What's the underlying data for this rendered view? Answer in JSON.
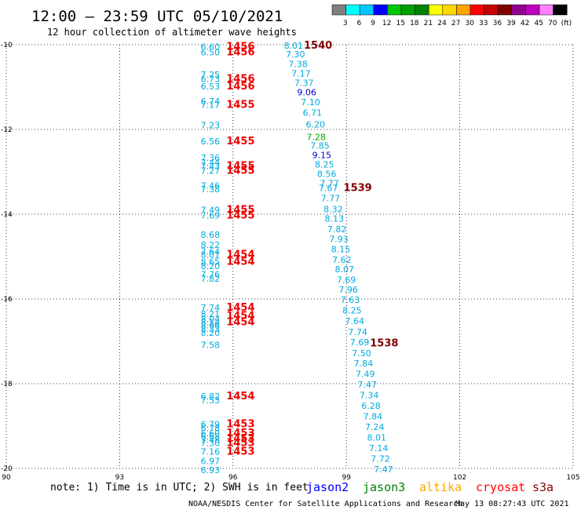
{
  "header": {
    "title": "12:00 – 23:59 UTC 05/10/2021",
    "subtitle": "12 hour collection of altimeter wave heights"
  },
  "color_scale": {
    "colors": [
      "#808080",
      "#00ffff",
      "#00c8ff",
      "#0000ff",
      "#00c800",
      "#00a000",
      "#008000",
      "#ffff00",
      "#ffd700",
      "#ffa500",
      "#ff0000",
      "#c80000",
      "#800000",
      "#900090",
      "#c000c0",
      "#ff80ff",
      "#000000"
    ],
    "labels": [
      "3",
      "6",
      "9",
      "12",
      "15",
      "18",
      "21",
      "24",
      "27",
      "30",
      "33",
      "36",
      "39",
      "42",
      "45",
      "70",
      "(ft)"
    ]
  },
  "footer": {
    "note": "note:  1) Time is in UTC; 2) SWH is in feet",
    "satellites": [
      {
        "name": "jason2",
        "color": "#0000ff"
      },
      {
        "name": "jason3",
        "color": "#008000"
      },
      {
        "name": "altika",
        "color": "#ffa500"
      },
      {
        "name": "cryosat",
        "color": "#ff0000"
      },
      {
        "name": "s3a",
        "color": "#800000"
      }
    ],
    "credit": "NOAA/NESDIS Center for Satellite Applications and Research",
    "timestamp": "May 13 08:27:43 UTC 2021"
  },
  "chart_data": {
    "type": "scatter",
    "title": "",
    "xlabel": "",
    "ylabel": "",
    "xlim": [
      90,
      105
    ],
    "ylim": [
      -20,
      -10
    ],
    "x_ticks": [
      "90",
      "93",
      "96",
      "99",
      "102",
      "105"
    ],
    "y_ticks": [
      "-10",
      "-12",
      "-14",
      "-16",
      "-18",
      "-20"
    ],
    "grid": "dotted",
    "track_a_color": "#00aadd",
    "track_a_x_label": 95.4,
    "track_a": [
      {
        "y": -10.05,
        "v": "6.60"
      },
      {
        "y": -10.18,
        "v": "6.50"
      },
      {
        "y": -10.7,
        "v": "7.25"
      },
      {
        "y": -10.81,
        "v": "6.73"
      },
      {
        "y": -10.98,
        "v": "6.53"
      },
      {
        "y": -11.33,
        "v": "6.74"
      },
      {
        "y": -11.42,
        "v": "7.17"
      },
      {
        "y": -11.9,
        "v": "7.23"
      },
      {
        "y": -12.28,
        "v": "6.56"
      },
      {
        "y": -12.67,
        "v": "7.36"
      },
      {
        "y": -12.78,
        "v": "7.44"
      },
      {
        "y": -12.86,
        "v": "7.43"
      },
      {
        "y": -12.97,
        "v": "7.27"
      },
      {
        "y": -13.32,
        "v": "7.46"
      },
      {
        "y": -13.41,
        "v": "7.38"
      },
      {
        "y": -13.9,
        "v": "7.49"
      },
      {
        "y": -14.03,
        "v": "7.69"
      },
      {
        "y": -14.48,
        "v": "8.68"
      },
      {
        "y": -14.72,
        "v": "8.22"
      },
      {
        "y": -14.88,
        "v": "7.64"
      },
      {
        "y": -14.95,
        "v": "8.01"
      },
      {
        "y": -15.12,
        "v": "8.65"
      },
      {
        "y": -15.22,
        "v": "8.20"
      },
      {
        "y": -15.42,
        "v": "7.76"
      },
      {
        "y": -15.52,
        "v": "7.82"
      },
      {
        "y": -16.2,
        "v": "7.74"
      },
      {
        "y": -16.35,
        "v": "8.21"
      },
      {
        "y": -16.47,
        "v": "8.04"
      },
      {
        "y": -16.55,
        "v": "8.14"
      },
      {
        "y": -16.62,
        "v": "8.06"
      },
      {
        "y": -16.7,
        "v": "8.33"
      },
      {
        "y": -16.8,
        "v": "8.20"
      },
      {
        "y": -17.08,
        "v": "7.58"
      },
      {
        "y": -18.3,
        "v": "6.82"
      },
      {
        "y": -18.39,
        "v": "7.53"
      },
      {
        "y": -18.95,
        "v": "6.79"
      },
      {
        "y": -19.05,
        "v": "6.78"
      },
      {
        "y": -19.17,
        "v": "6.60"
      },
      {
        "y": -19.24,
        "v": "6.68"
      },
      {
        "y": -19.32,
        "v": "7.48"
      },
      {
        "y": -19.4,
        "v": "7.30"
      },
      {
        "y": -19.6,
        "v": "7.16"
      },
      {
        "y": -19.82,
        "v": "6.97"
      },
      {
        "y": -20.04,
        "v": "6.93"
      }
    ],
    "time_label_color": "#ee0000",
    "track_a_times_x": 96.2,
    "track_a_times": [
      {
        "y": -10.05,
        "v": "1456"
      },
      {
        "y": -10.18,
        "v": "1456"
      },
      {
        "y": -10.81,
        "v": "1456"
      },
      {
        "y": -10.98,
        "v": "1456"
      },
      {
        "y": -11.42,
        "v": "1455"
      },
      {
        "y": -12.28,
        "v": "1455"
      },
      {
        "y": -12.86,
        "v": "1455"
      },
      {
        "y": -12.97,
        "v": "1455"
      },
      {
        "y": -13.9,
        "v": "1455"
      },
      {
        "y": -14.03,
        "v": "1455"
      },
      {
        "y": -14.95,
        "v": "1454"
      },
      {
        "y": -15.12,
        "v": "1454"
      },
      {
        "y": -16.2,
        "v": "1454"
      },
      {
        "y": -16.4,
        "v": "1454"
      },
      {
        "y": -16.55,
        "v": "1454"
      },
      {
        "y": -18.3,
        "v": "1454"
      },
      {
        "y": -18.95,
        "v": "1453"
      },
      {
        "y": -19.17,
        "v": "1453"
      },
      {
        "y": -19.3,
        "v": "1453"
      },
      {
        "y": -19.4,
        "v": "1453"
      },
      {
        "y": -19.6,
        "v": "1453"
      }
    ],
    "track_b_color": "#00aadd",
    "track_b": [
      {
        "x": 97.6,
        "y": -10.02,
        "v": "8.01"
      },
      {
        "x": 97.65,
        "y": -10.22,
        "v": "7.30"
      },
      {
        "x": 97.72,
        "y": -10.45,
        "v": "7.38"
      },
      {
        "x": 97.8,
        "y": -10.68,
        "v": "7.17"
      },
      {
        "x": 97.88,
        "y": -10.9,
        "v": "7.37"
      },
      {
        "x": 98.05,
        "y": -11.35,
        "v": "7.10"
      },
      {
        "x": 98.1,
        "y": -11.6,
        "v": "6.71"
      },
      {
        "x": 98.18,
        "y": -11.88,
        "v": "6.20"
      },
      {
        "x": 98.3,
        "y": -12.38,
        "v": "7.85"
      },
      {
        "x": 98.42,
        "y": -12.82,
        "v": "8.25"
      },
      {
        "x": 98.48,
        "y": -13.05,
        "v": "8.56"
      },
      {
        "x": 98.55,
        "y": -13.27,
        "v": "7.77"
      },
      {
        "x": 98.52,
        "y": -13.38,
        "v": "7.67"
      },
      {
        "x": 98.58,
        "y": -13.62,
        "v": "7.77"
      },
      {
        "x": 98.65,
        "y": -13.88,
        "v": "8.32"
      },
      {
        "x": 98.68,
        "y": -14.1,
        "v": "8.13"
      },
      {
        "x": 98.75,
        "y": -14.35,
        "v": "7.82"
      },
      {
        "x": 98.8,
        "y": -14.58,
        "v": "7.93"
      },
      {
        "x": 98.85,
        "y": -14.82,
        "v": "8.15"
      },
      {
        "x": 98.88,
        "y": -15.07,
        "v": "7.62"
      },
      {
        "x": 98.95,
        "y": -15.3,
        "v": "8.07"
      },
      {
        "x": 99.0,
        "y": -15.55,
        "v": "7.69"
      },
      {
        "x": 99.05,
        "y": -15.78,
        "v": "7.96"
      },
      {
        "x": 99.1,
        "y": -16.02,
        "v": "7.63"
      },
      {
        "x": 99.15,
        "y": -16.27,
        "v": "8.25"
      },
      {
        "x": 99.22,
        "y": -16.52,
        "v": "7.64"
      },
      {
        "x": 99.3,
        "y": -16.78,
        "v": "7.74"
      },
      {
        "x": 99.35,
        "y": -17.02,
        "v": "7.69"
      },
      {
        "x": 99.4,
        "y": -17.28,
        "v": "7.50"
      },
      {
        "x": 99.45,
        "y": -17.52,
        "v": "7.84"
      },
      {
        "x": 99.5,
        "y": -17.77,
        "v": "7.49"
      },
      {
        "x": 99.55,
        "y": -18.02,
        "v": "7.47"
      },
      {
        "x": 99.6,
        "y": -18.27,
        "v": "7.34"
      },
      {
        "x": 99.65,
        "y": -18.52,
        "v": "6.28"
      },
      {
        "x": 99.7,
        "y": -18.77,
        "v": "7.84"
      },
      {
        "x": 99.75,
        "y": -19.02,
        "v": "7.24"
      },
      {
        "x": 99.8,
        "y": -19.27,
        "v": "8.01"
      },
      {
        "x": 99.85,
        "y": -19.52,
        "v": "7.14"
      },
      {
        "x": 99.9,
        "y": -19.77,
        "v": "7.72"
      },
      {
        "x": 99.98,
        "y": -20.02,
        "v": "7.47"
      }
    ],
    "track_b_special": [
      {
        "x": 97.95,
        "y": -11.12,
        "v": "9.06",
        "color": "#0000cc"
      },
      {
        "x": 98.2,
        "y": -12.18,
        "v": "7.28",
        "color": "#00aa00"
      },
      {
        "x": 98.35,
        "y": -12.6,
        "v": "9.15",
        "color": "#0000cc"
      }
    ],
    "track_b_times_color": "#800000",
    "track_b_times": [
      {
        "x": 98.25,
        "y": -10.02,
        "v": "1540"
      },
      {
        "x": 99.3,
        "y": -13.38,
        "v": "1539"
      },
      {
        "x": 100.0,
        "y": -17.05,
        "v": "1538"
      }
    ]
  }
}
